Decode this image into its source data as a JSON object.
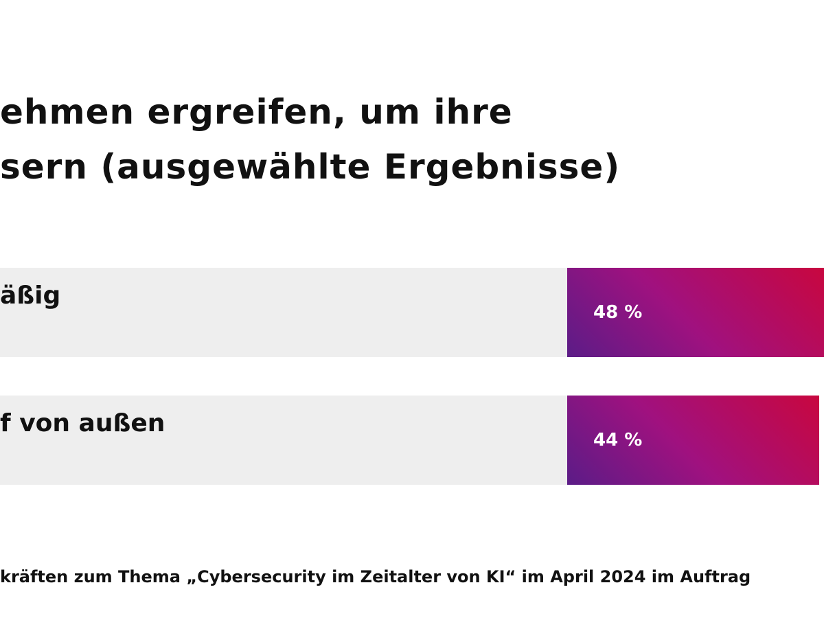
{
  "chart_data": {
    "type": "bar",
    "orientation": "horizontal",
    "title_lines": [
      "ehmen ergreifen, um ihre",
      "sern (ausgewählte Ergebnisse)"
    ],
    "categories": [
      "äßig",
      "f von außen"
    ],
    "values": [
      48,
      44
    ],
    "value_labels": [
      "48 %",
      "44 %"
    ],
    "unit": "%",
    "xlim": [
      0,
      100
    ],
    "footnote": "kräften zum Thema „Cybersecurity im Zeitalter von KI“ im April 2024 im Auftrag",
    "colors": {
      "bar_gradient_start": "#5b1c87",
      "bar_gradient_mid": "#a0117f",
      "bar_gradient_end": "#c8073f",
      "track": "#eeeeee",
      "text": "#111111",
      "value_text": "#ffffff"
    }
  }
}
